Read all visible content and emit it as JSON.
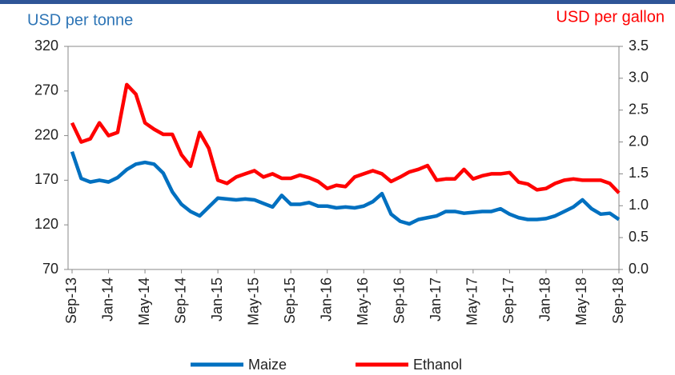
{
  "chart_data": {
    "type": "line",
    "y_axis_label": "USD per tonne",
    "y2_axis_label": "USD per gallon",
    "categories": [
      "Sep-13",
      null,
      null,
      null,
      "Jan-14",
      null,
      null,
      null,
      "May-14",
      null,
      null,
      null,
      "Sep-14",
      null,
      null,
      null,
      "Jan-15",
      null,
      null,
      null,
      "May-15",
      null,
      null,
      null,
      "Sep-15",
      null,
      null,
      null,
      "Jan-16",
      null,
      null,
      null,
      "May-16",
      null,
      null,
      null,
      "Sep-16",
      null,
      null,
      null,
      "Jan-17",
      null,
      null,
      null,
      "May-17",
      null,
      null,
      null,
      "Sep-17",
      null,
      null,
      null,
      "Jan-18",
      null,
      null,
      null,
      "May-18",
      null,
      null,
      null,
      "Sep-18"
    ],
    "series": [
      {
        "name": "Maize",
        "color": "#0070c0",
        "axis": "y",
        "values": [
          202,
          172,
          168,
          170,
          168,
          173,
          182,
          188,
          190,
          188,
          178,
          157,
          143,
          135,
          130,
          140,
          150,
          149,
          148,
          149,
          148,
          144,
          140,
          153,
          143,
          143,
          145,
          141,
          141,
          139,
          140,
          139,
          141,
          146,
          155,
          132,
          124,
          121,
          126,
          128,
          130,
          135,
          135,
          133,
          134,
          135,
          135,
          138,
          132,
          128,
          126,
          126,
          127,
          130,
          135,
          140,
          148,
          138,
          132,
          133,
          126
        ]
      },
      {
        "name": "Ethanol",
        "color": "#ff0000",
        "axis": "y2",
        "values": [
          2.3,
          2.0,
          2.05,
          2.3,
          2.1,
          2.15,
          2.9,
          2.75,
          2.3,
          2.2,
          2.12,
          2.12,
          1.8,
          1.62,
          2.15,
          1.9,
          1.4,
          1.35,
          1.45,
          1.5,
          1.55,
          1.45,
          1.5,
          1.43,
          1.43,
          1.48,
          1.44,
          1.38,
          1.27,
          1.32,
          1.3,
          1.45,
          1.5,
          1.55,
          1.5,
          1.38,
          1.45,
          1.53,
          1.57,
          1.63,
          1.4,
          1.42,
          1.42,
          1.57,
          1.42,
          1.47,
          1.5,
          1.5,
          1.52,
          1.37,
          1.34,
          1.25,
          1.27,
          1.35,
          1.4,
          1.42,
          1.4,
          1.4,
          1.4,
          1.35,
          1.2
        ]
      }
    ],
    "ylim": [
      70,
      320
    ],
    "yticks": [
      70,
      120,
      170,
      220,
      270,
      320
    ],
    "y2lim": [
      0,
      3.5
    ],
    "y2ticks": [
      {
        "value": 0,
        "label": "0.0"
      },
      0.5,
      {
        "value": 1,
        "label": "1.0"
      },
      1.5,
      {
        "value": 2,
        "label": "2.0"
      },
      2.5,
      {
        "value": 3,
        "label": "3.0"
      },
      3.5
    ],
    "grid": false,
    "legend": "bottom"
  }
}
